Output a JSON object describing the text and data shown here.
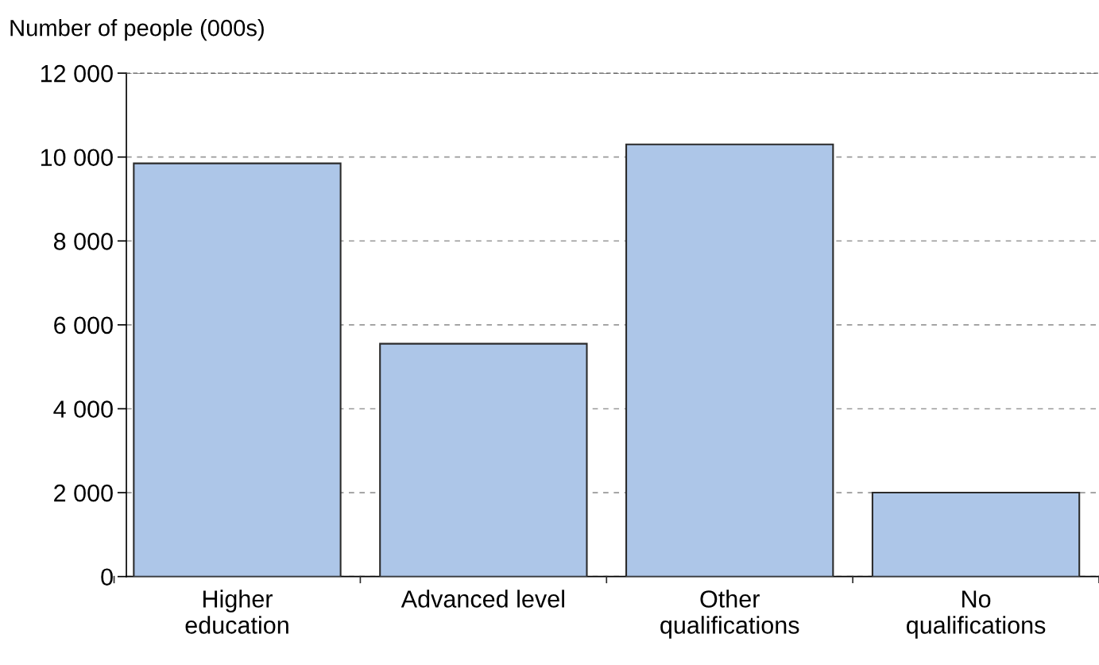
{
  "chart_data": {
    "type": "bar",
    "ylabel": "Number of people (000s)",
    "categories": [
      "Higher\neducation",
      "Advanced level",
      "Other\nqualifications",
      "No\nqualifications"
    ],
    "values": [
      9850,
      5550,
      10300,
      2000
    ],
    "color": "#adc6e8",
    "ylim": [
      0,
      12000
    ],
    "yticks": [
      0,
      {
        "value": 2000,
        "label": "2 000"
      },
      {
        "value": 4000,
        "label": "4 000"
      },
      {
        "value": 6000,
        "label": "6 000"
      },
      {
        "value": 8000,
        "label": "8 000"
      },
      {
        "value": 10000,
        "label": "10 000"
      },
      {
        "value": 12000,
        "label": "12 000"
      }
    ],
    "grid": "y"
  }
}
